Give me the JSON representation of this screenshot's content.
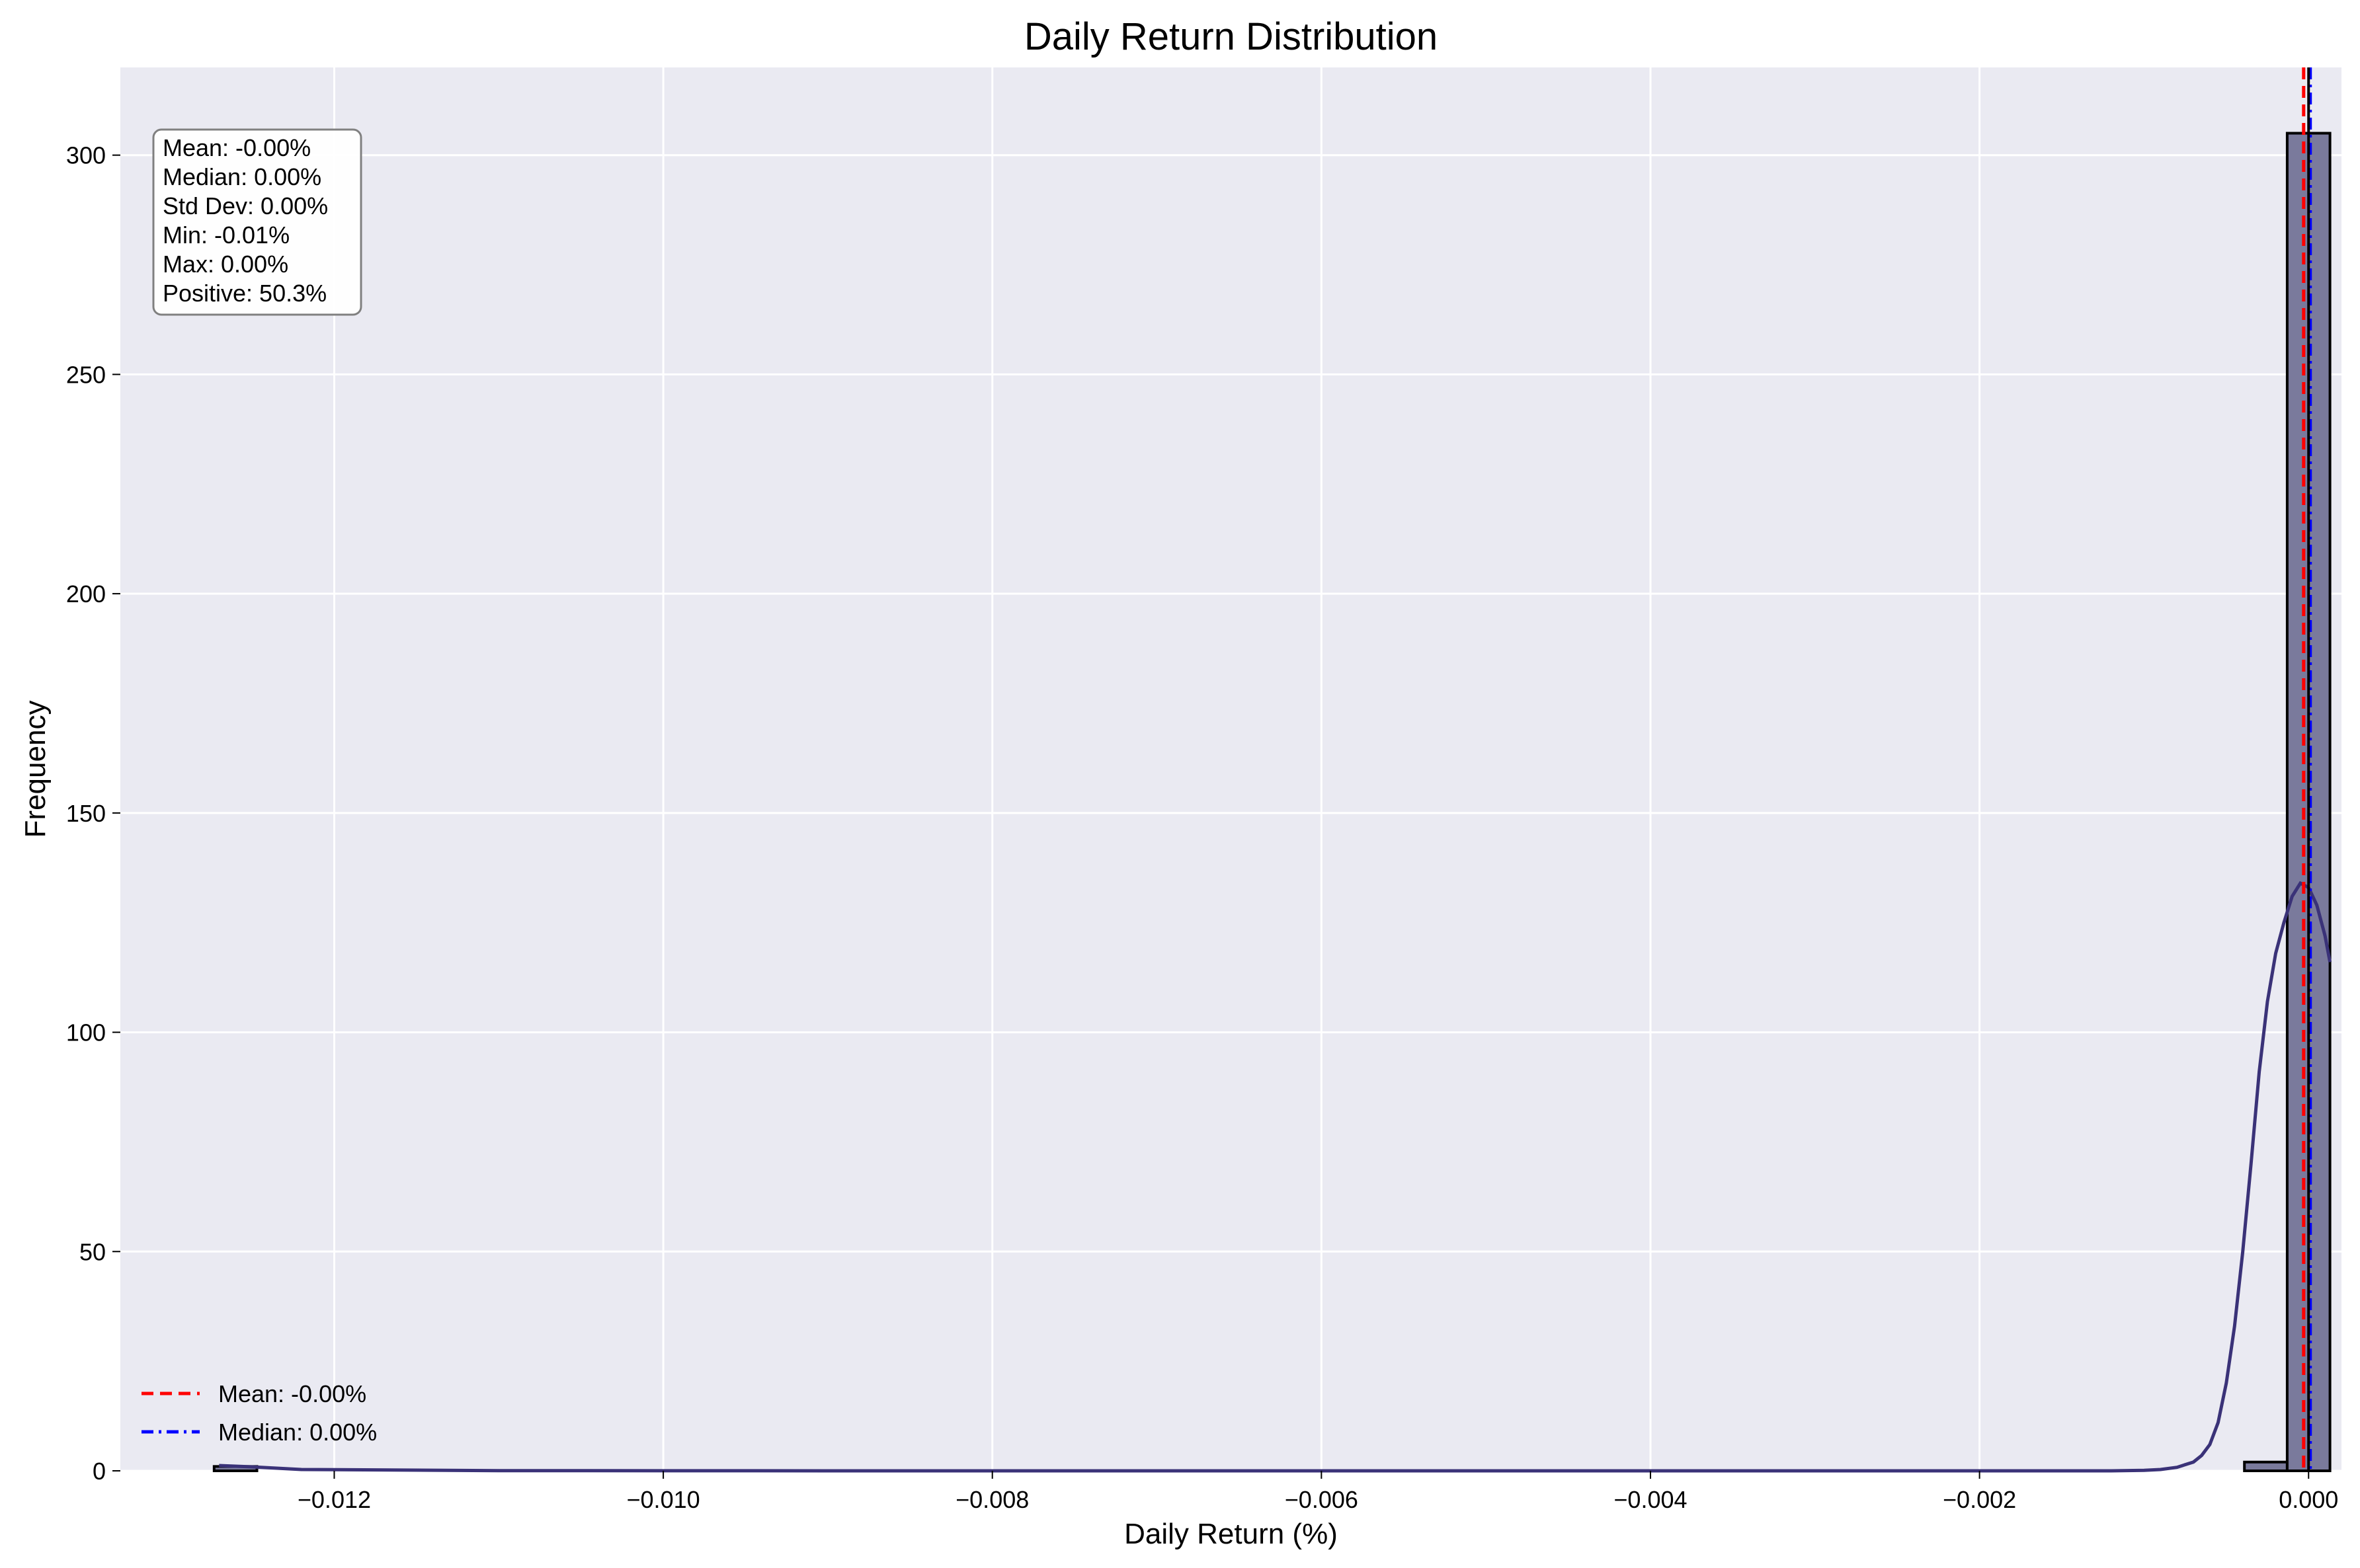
{
  "chart_data": {
    "type": "bar",
    "title": "Daily Return Distribution",
    "xlabel": "Daily Return (%)",
    "ylabel": "Frequency",
    "xlim": [
      -0.0133,
      0.0002
    ],
    "ylim": [
      0,
      320
    ],
    "xticks": [
      -0.012,
      -0.01,
      -0.008,
      -0.006,
      -0.004,
      -0.002,
      0.0
    ],
    "xtick_labels": [
      "−0.012",
      "−0.010",
      "−0.008",
      "−0.006",
      "−0.004",
      "−0.002",
      "0.000"
    ],
    "yticks": [
      0,
      50,
      100,
      150,
      200,
      250,
      300
    ],
    "ytick_labels": [
      "0",
      "50",
      "100",
      "150",
      "200",
      "250",
      "300"
    ],
    "grid": true,
    "bins": [
      {
        "x0": -0.01273,
        "x1": -0.01247,
        "count": 1
      },
      {
        "x0": -0.00039,
        "x1": -0.00013,
        "count": 2
      },
      {
        "x0": -0.00013,
        "x1": 0.00013,
        "count": 305
      }
    ],
    "kde": {
      "name": "KDE",
      "x": [
        -0.0127,
        -0.0125,
        -0.0122,
        -0.011,
        -0.009,
        -0.007,
        -0.005,
        -0.003,
        -0.0018,
        -0.0012,
        -0.001,
        -0.0009,
        -0.0008,
        -0.0007,
        -0.00065,
        -0.0006,
        -0.00055,
        -0.0005,
        -0.00045,
        -0.0004,
        -0.00035,
        -0.0003,
        -0.00025,
        -0.0002,
        -0.00015,
        -0.0001,
        -5e-05,
        0.0,
        5e-05,
        0.0001,
        0.00013
      ],
      "y": [
        1.2,
        0.9,
        0.3,
        0.05,
        0,
        0,
        0,
        0,
        0,
        0,
        0.1,
        0.3,
        0.8,
        2,
        3.5,
        6,
        11,
        20,
        33,
        50,
        70,
        91,
        107,
        118,
        125,
        131,
        134,
        133,
        129,
        122,
        116
      ]
    },
    "mean_line": {
      "name": "Mean: -0.00%",
      "x": -3e-05,
      "color": "#ff0000",
      "style": "dashed"
    },
    "median_line": {
      "name": "Median: 0.00%",
      "x": 1e-05,
      "color": "#0000ff",
      "style": "dashdot"
    },
    "zero_line": {
      "x": 0.0,
      "color": "#000000",
      "style": "solid"
    },
    "stats_box": [
      "Mean: -0.00%",
      "Median: 0.00%",
      "Std Dev: 0.00%",
      "Min: -0.01%",
      "Max: 0.00%",
      "Positive: 50.3%"
    ],
    "legend_position": "lower-left",
    "colors": {
      "plot_bg": "#eaeaf2",
      "bar_fill": "#7a7a9c",
      "bar_edge": "#000000",
      "kde_line": "#3a3278"
    }
  }
}
